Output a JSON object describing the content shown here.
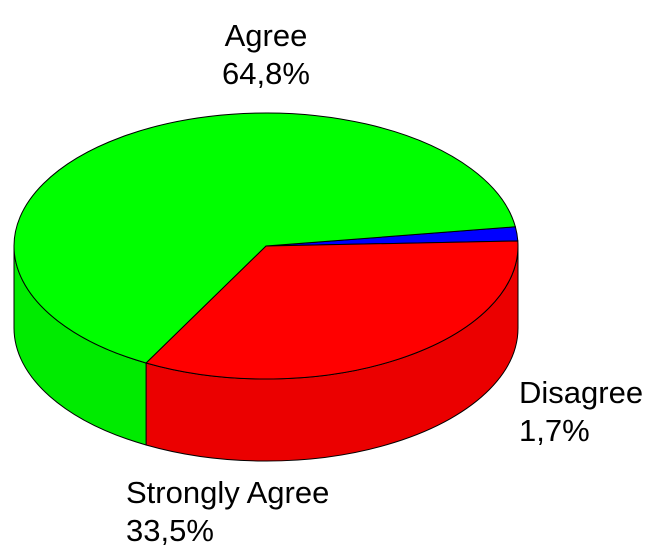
{
  "chart_data": {
    "type": "pie",
    "three_d": true,
    "start_angle_deg": -8.3,
    "direction": "clockwise",
    "slices": [
      {
        "label": "Disagree",
        "value": 1.7,
        "value_label": "1,7%",
        "color": "#0000ff"
      },
      {
        "label": "Strongly Agree",
        "value": 33.5,
        "value_label": "33,5%",
        "color": "#ff0000"
      },
      {
        "label": "Agree",
        "value": 64.8,
        "value_label": "64,8%",
        "color": "#00ff00"
      }
    ]
  }
}
